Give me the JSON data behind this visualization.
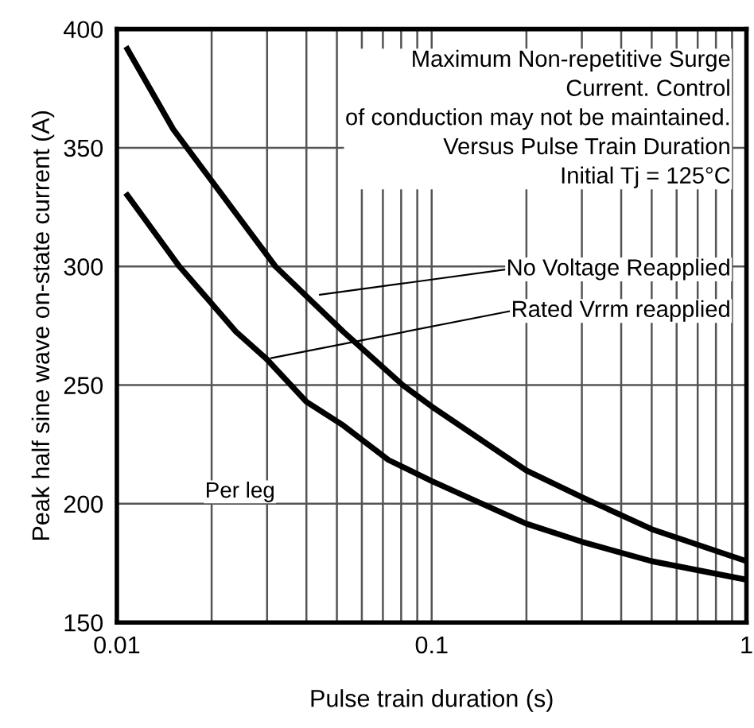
{
  "chart_data": {
    "type": "line",
    "xlabel": "Pulse train duration (s)",
    "ylabel": "Peak half sine wave on-state current (A)",
    "log": "x",
    "xlim": [
      0.01,
      1
    ],
    "xticks": [
      0.01,
      0.1,
      1
    ],
    "ylim": [
      150,
      400
    ],
    "yticks": [
      150,
      200,
      250,
      300,
      350,
      400
    ],
    "grid": true,
    "marker": "none",
    "line_style": "solid",
    "series": [
      {
        "color": "#000000",
        "x": [
          0.0108,
          0.0151,
          0.0319,
          0.0524,
          0.081,
          0.1,
          0.2,
          0.3,
          0.5,
          1
        ],
        "values": [
          391.6,
          357.8,
          300,
          272.5,
          250,
          241,
          214,
          202.8,
          189.3,
          175.8
        ]
      },
      {
        "color": "#000000",
        "x": [
          0.0108,
          0.0158,
          0.0239,
          0.0299,
          0.04,
          0.0524,
          0.0728,
          0.1,
          0.2,
          0.3,
          0.5,
          1
        ],
        "values": [
          330,
          300,
          272.5,
          261,
          243,
          233,
          218.5,
          209.6,
          191.6,
          184,
          175.8,
          168
        ]
      }
    ],
    "annotations": [
      "Maximum Non-repetitive Surge\nCurrent. Control\nof conduction may not be maintained.\nVersus Pulse Train Duration\nInitial Tj = 125°C",
      {
        "text": "No Voltage Reapplied",
        "x": 0.0427,
        "y": 287.8
      },
      {
        "text": "Rated Vrrm reapplied",
        "x": 0.0299,
        "y": 261
      },
      "Per leg"
    ]
  }
}
